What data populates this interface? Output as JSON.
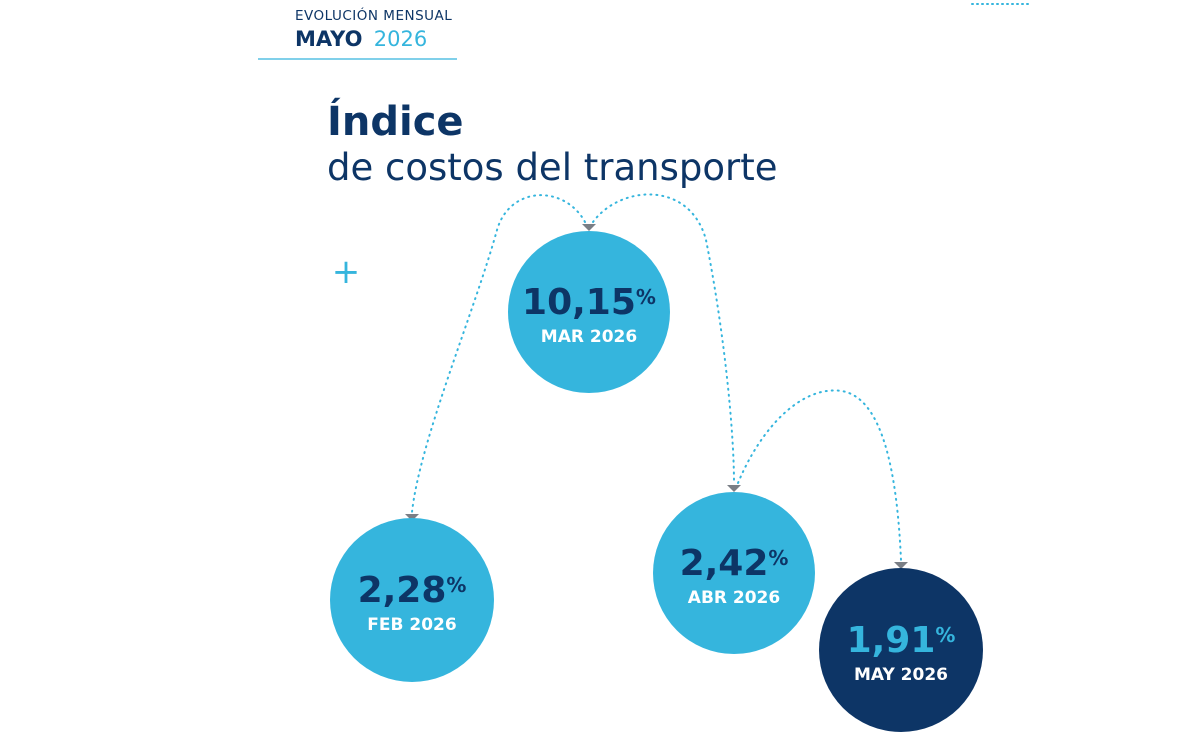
{
  "header": {
    "kicker": "EVOLUCIÓN MENSUAL",
    "month": "MAYO",
    "year": "2026"
  },
  "title": {
    "line1": "Índice",
    "line2": "de costos del transporte"
  },
  "plus": "+",
  "unit": "%",
  "bubbles": [
    {
      "value": "10,15",
      "label": "MAR 2026"
    },
    {
      "value": "2,28",
      "label": "FEB 2026"
    },
    {
      "value": "2,42",
      "label": "ABR 2026"
    },
    {
      "value": "1,91",
      "label": "MAY 2026"
    }
  ]
}
